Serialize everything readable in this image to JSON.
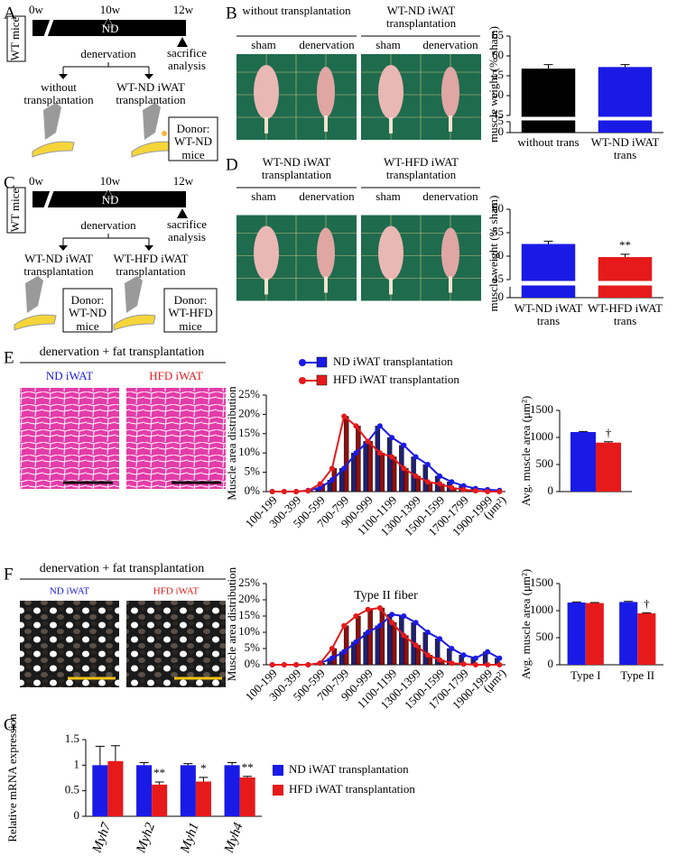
{
  "panels": {
    "letters": [
      "A",
      "B",
      "C",
      "D",
      "E",
      "F",
      "G"
    ],
    "A": {
      "mouse": "WT mice",
      "times": [
        "0w",
        "10w",
        "12w"
      ],
      "diet": "ND",
      "step1": "denervation",
      "step2": "sacrifice analysis",
      "arm1": "without transplantation",
      "arm2": "WT-ND iWAT transplantation",
      "donor": "Donor: WT-ND mice"
    },
    "B": {
      "groups": [
        "without transplantation",
        "WT-ND iWAT transplantation"
      ],
      "conditions": [
        "sham",
        "denervation",
        "sham",
        "denervation"
      ]
    },
    "C": {
      "mouse": "WT mice",
      "times": [
        "0w",
        "10w",
        "12w"
      ],
      "diet": "ND",
      "step1": "denervation",
      "step2": "sacrifice analysis",
      "arm1": "WT-ND iWAT transplantation",
      "arm2": "WT-HFD iWAT transplantation",
      "donors": [
        "Donor: WT-ND mice",
        "Donor: WT-HFD mice"
      ]
    },
    "D": {
      "groups": [
        "WT-ND iWAT transplantation",
        "WT-HFD iWAT transplantation"
      ],
      "conditions": [
        "sham",
        "denervation",
        "sham",
        "denervation"
      ]
    },
    "E": {
      "header": "denervation + fat transplantation",
      "images": [
        "ND iWAT",
        "HFD iWAT"
      ]
    },
    "F": {
      "header": "denervation + fat transplantation",
      "images": [
        "ND iWAT",
        "HFD iWAT"
      ]
    }
  },
  "chart_data": [
    {
      "type": "bar",
      "categories": [
        "without trans",
        "WT-ND iWAT trans"
      ],
      "values": [
        56.8,
        57.2
      ],
      "errors": [
        1.0,
        0.6
      ],
      "colors": [
        "#000000",
        "#1a1ae6"
      ],
      "ylim": [
        45,
        65
      ],
      "yticks": [
        45,
        50,
        55,
        60,
        65
      ],
      "ylim_lower": [
        0,
        5
      ],
      "yticks_lower": [
        0,
        5
      ],
      "ylabel": "muscle weight (% sham)"
    },
    {
      "type": "bar",
      "categories": [
        "WT-ND iWAT trans",
        "WT-HFD iWAT trans"
      ],
      "values": [
        52.6,
        49.8
      ],
      "errors": [
        0.6,
        0.6
      ],
      "colors": [
        "#1a1ae6",
        "#e61a1a"
      ],
      "annotations": [
        null,
        "**"
      ],
      "ylim": [
        45,
        60
      ],
      "yticks": [
        45,
        50,
        55,
        60
      ],
      "ylim_lower": [
        0,
        5
      ],
      "yticks_lower": [
        0
      ],
      "ylabel": "muscle weight (% sham)"
    },
    {
      "type": "line",
      "categories": [
        "100-199",
        null,
        "300-399",
        null,
        "500-599",
        null,
        "700-799",
        null,
        "900-999",
        null,
        "1100-1199",
        null,
        "1300-1399",
        null,
        "1500-1599",
        null,
        "1700-1799",
        null,
        "1900-1999",
        null
      ],
      "x_unit": "(μm²)",
      "ylabel": "Muscle area distribution",
      "legend": "above",
      "ylim": [
        0,
        25
      ],
      "yticks": [
        {
          "value": 0,
          "label": "0%"
        },
        {
          "value": 5,
          "label": "5%"
        },
        {
          "value": 10,
          "label": "10%"
        },
        {
          "value": 15,
          "label": "15%"
        },
        {
          "value": 20,
          "label": "20%"
        },
        {
          "value": 25,
          "label": "25%"
        }
      ],
      "series": [
        {
          "name": "ND iWAT transplantation",
          "color": "#1a1ae6",
          "values": [
            0,
            0,
            0,
            0.3,
            1,
            3,
            6,
            10,
            13,
            17,
            14,
            12,
            9,
            7,
            4,
            2.5,
            1.5,
            0.8,
            0.5,
            0.3
          ]
        },
        {
          "name": "HFD iWAT transplantation",
          "color": "#e61a1a",
          "values": [
            0,
            0,
            0,
            0.2,
            2,
            6,
            19.5,
            17,
            13,
            10,
            9,
            6,
            4,
            2.5,
            2,
            1,
            0.5,
            0.2,
            0,
            0
          ]
        }
      ]
    },
    {
      "type": "bar",
      "values": [
        1100,
        905
      ],
      "errors": [
        10,
        15
      ],
      "colors": [
        "#1a1ae6",
        "#e61a1a"
      ],
      "annotations": [
        null,
        "†"
      ],
      "ylim": [
        0,
        1500
      ],
      "yticks": [
        0,
        500,
        1000,
        1500
      ],
      "ylabel": "Avg. muscle area (μm²)"
    },
    {
      "type": "line",
      "title": "Type II fiber",
      "categories": [
        "100-199",
        null,
        "300-399",
        null,
        "500-599",
        null,
        "700-799",
        null,
        "900-999",
        null,
        "1100-1199",
        null,
        "1300-1399",
        null,
        "1500-1599",
        null,
        "1700-1799",
        null,
        "1900-1999",
        null
      ],
      "x_unit": "(μm²)",
      "ylabel": "Muscle area distribution",
      "ylim": [
        0,
        25
      ],
      "yticks": [
        {
          "value": 0,
          "label": "0%"
        },
        {
          "value": 5,
          "label": "5%"
        },
        {
          "value": 10,
          "label": "10%"
        },
        {
          "value": 15,
          "label": "15%"
        },
        {
          "value": 20,
          "label": "20%"
        },
        {
          "value": 25,
          "label": "25%"
        }
      ],
      "series": [
        {
          "color": "#1a1ae6",
          "values": [
            0,
            0,
            0,
            0,
            0.5,
            2,
            4,
            7,
            10,
            12,
            15.5,
            15,
            13,
            10,
            8,
            5,
            3,
            2,
            4,
            2
          ]
        },
        {
          "color": "#e61a1a",
          "values": [
            0,
            0,
            0,
            0,
            0.5,
            5,
            12,
            15,
            17,
            17.5,
            13,
            9,
            6,
            3,
            1.5,
            0.5,
            0.2,
            0,
            0,
            0
          ]
        }
      ]
    },
    {
      "type": "bar",
      "categories": [
        "Type I",
        "Type II"
      ],
      "ylim": [
        0,
        1500
      ],
      "yticks": [
        0,
        500,
        1000,
        1500
      ],
      "ylabel": "Avg. muscle area (μm²)",
      "series": [
        {
          "color": "#1a1ae6",
          "values": [
            1150,
            1160
          ],
          "errors": [
            10,
            10
          ]
        },
        {
          "color": "#e61a1a",
          "values": [
            1140,
            950
          ],
          "errors": [
            10,
            10
          ],
          "annotations": [
            null,
            "†"
          ]
        }
      ]
    },
    {
      "type": "bar",
      "categories": [
        "Myh7",
        "Myh2",
        "Myh1",
        "Myh4"
      ],
      "ylim": [
        0,
        1.5
      ],
      "yticks": [
        0,
        0.5,
        1,
        1.5
      ],
      "ylabel": "Relative mRNA expression",
      "legend": "right",
      "series": [
        {
          "name": "ND iWAT transplantation",
          "color": "#1a1ae6",
          "values": [
            1,
            1,
            1,
            1
          ],
          "errors": [
            0.37,
            0.05,
            0.03,
            0.05
          ]
        },
        {
          "name": "HFD iWAT transplantation",
          "color": "#e61a1a",
          "values": [
            1.08,
            0.62,
            0.68,
            0.76
          ],
          "errors": [
            0.3,
            0.05,
            0.08,
            0.02
          ],
          "annotations": [
            null,
            "**",
            "*",
            "**"
          ]
        }
      ]
    }
  ]
}
